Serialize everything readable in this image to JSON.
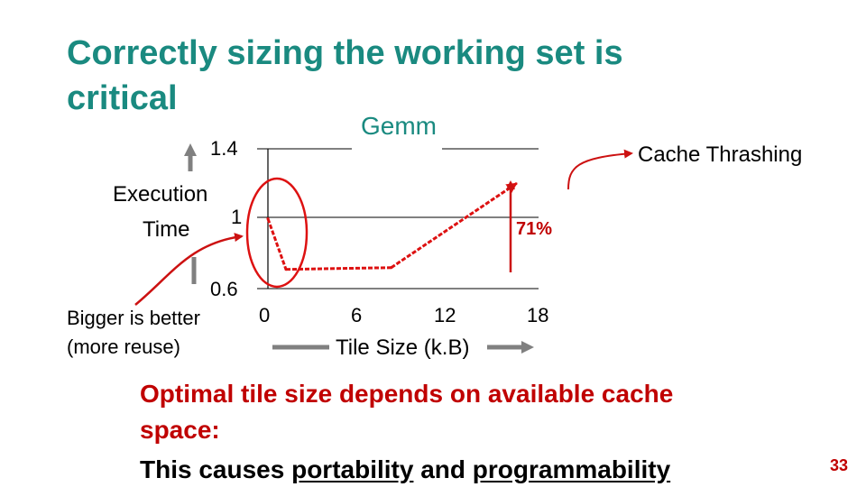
{
  "slide": {
    "title": "Correctly sizing the working set is critical",
    "title_color": "#1a8a80",
    "conclusion_line1": "Optimal tile size depends on available cache",
    "conclusion_line2": "space:",
    "conclusion_line3_prefix": "This causes ",
    "conclusion_underline1": "portability",
    "conclusion_mid": " and ",
    "conclusion_underline2": "programmability",
    "page_number": "33"
  },
  "annotations": {
    "cache_thrashing": "Cache Thrashing",
    "percent": "71%",
    "bigger_better_1": "Bigger is better",
    "bigger_better_2": "(more reuse)"
  },
  "chart_data": {
    "type": "line",
    "title": "Gemm",
    "ylabel_line1": "Execution",
    "ylabel_line2": "Time",
    "xlabel": "Tile Size (k.B)",
    "x_ticks": [
      "0",
      "6",
      "12",
      "18"
    ],
    "y_ticks": [
      "1.4",
      "1",
      "0.6"
    ],
    "xlim": [
      0,
      18
    ],
    "ylim": [
      0.6,
      1.4
    ],
    "grid": true,
    "series": [
      {
        "color": "#dd1111",
        "points": [
          {
            "x": 0,
            "y": 1.0
          },
          {
            "x": 1.2,
            "y": 0.71
          },
          {
            "x": 8.2,
            "y": 0.72
          },
          {
            "x": 16.5,
            "y": 1.2
          }
        ]
      }
    ]
  },
  "colors": {
    "accent_red": "#c00000",
    "line_red": "#dd1111",
    "arrow_gray": "#808080"
  }
}
